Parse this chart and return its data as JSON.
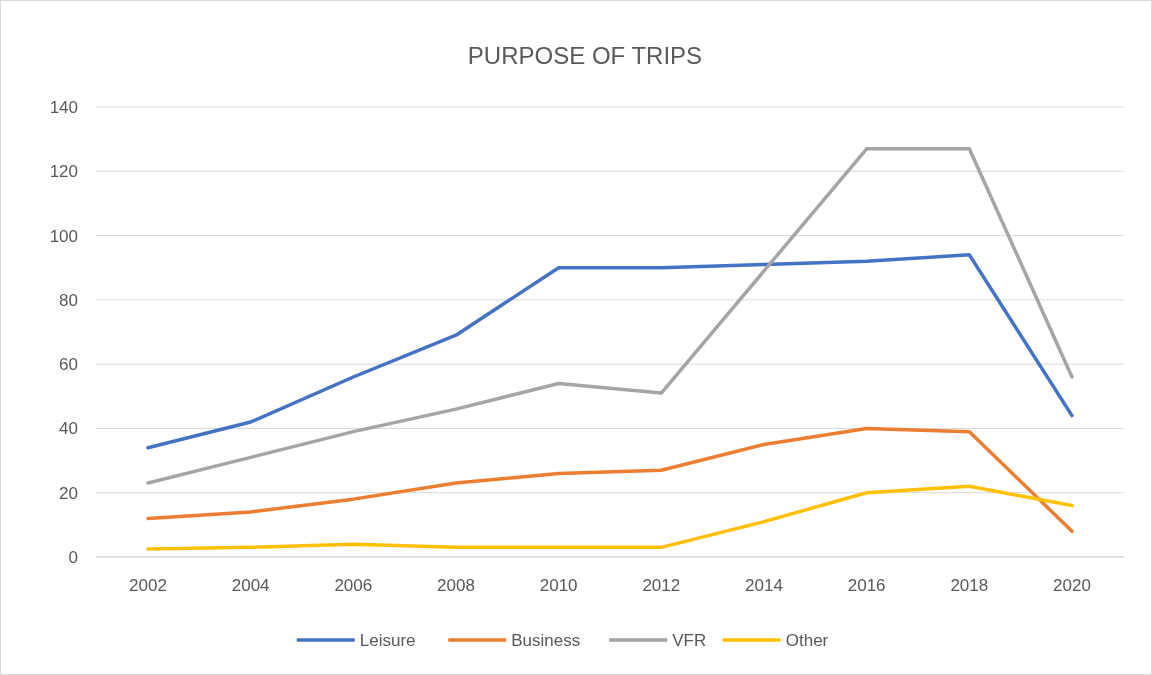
{
  "chart_data": {
    "type": "line",
    "title": "PURPOSE OF TRIPS",
    "categories": [
      "2002",
      "2004",
      "2006",
      "2008",
      "2010",
      "2012",
      "2014",
      "2016",
      "2018",
      "2020"
    ],
    "series": [
      {
        "name": "Leisure",
        "color": "#4472c4",
        "values": [
          34,
          42,
          56,
          69,
          90,
          90,
          91,
          92,
          94,
          44
        ]
      },
      {
        "name": "Business",
        "color": "#ed7d31",
        "values": [
          12,
          14,
          18,
          23,
          26,
          27,
          35,
          40,
          39,
          8
        ]
      },
      {
        "name": "VFR",
        "color": "#a5a5a5",
        "values": [
          23,
          31,
          39,
          46,
          54,
          51,
          89,
          127,
          127,
          56
        ]
      },
      {
        "name": "Other",
        "color": "#ffc000",
        "values": [
          2.5,
          3,
          4,
          3,
          3,
          3,
          11,
          20,
          22,
          16
        ]
      }
    ],
    "ylim": [
      0,
      140
    ],
    "yticks": [
      0,
      20,
      40,
      60,
      80,
      100,
      120,
      140
    ],
    "grid": "y",
    "legend": "bottom",
    "marker": "none",
    "line_style": "solid"
  }
}
